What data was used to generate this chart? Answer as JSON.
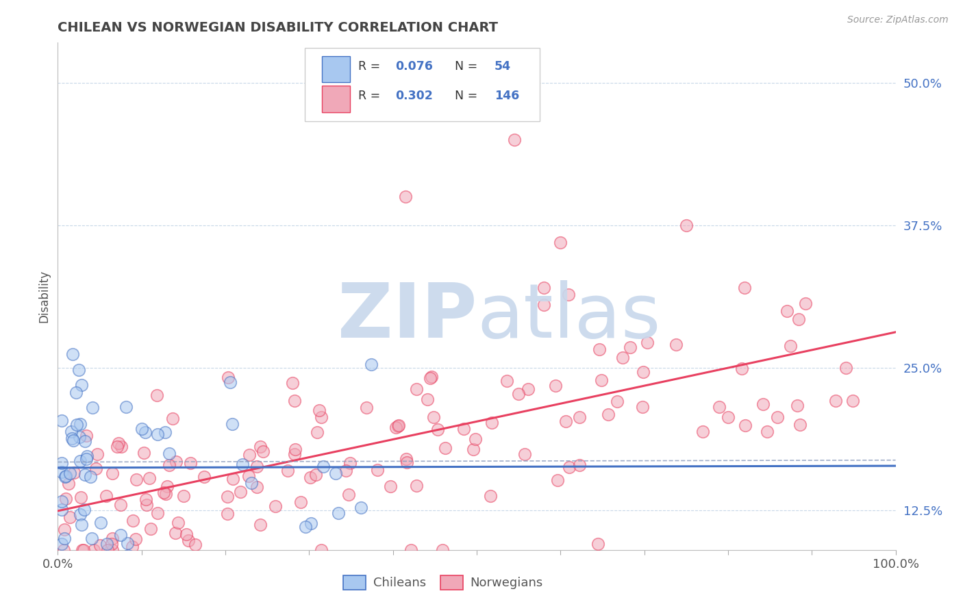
{
  "title": "CHILEAN VS NORWEGIAN DISABILITY CORRELATION CHART",
  "source_text": "Source: ZipAtlas.com",
  "ylabel": "Disability",
  "xlim": [
    0,
    1
  ],
  "ylim": [
    0.09,
    0.535
  ],
  "yticks": [
    0.125,
    0.25,
    0.375,
    0.5
  ],
  "ytick_labels": [
    "12.5%",
    "25.0%",
    "37.5%",
    "50.0%"
  ],
  "xticks": [
    0.0,
    0.1,
    0.2,
    0.3,
    0.4,
    0.5,
    0.6,
    0.7,
    0.8,
    0.9,
    1.0
  ],
  "xtick_labels_visible": [
    "0.0%",
    "",
    "",
    "",
    "",
    "",
    "",
    "",
    "",
    "",
    "100.0%"
  ],
  "color_chilean": "#A8C8F0",
  "color_norwegian": "#F0A8B8",
  "color_line_chilean": "#4472C4",
  "color_line_norwegian": "#E84060",
  "color_grid": "#C8D8E8",
  "watermark_zip_color": "#C8D8EC",
  "watermark_atlas_color": "#C8D8EC",
  "legend_r1": "0.076",
  "legend_n1": "54",
  "legend_r2": "0.302",
  "legend_n2": "146",
  "scatter_alpha": 0.55,
  "scatter_size": 160
}
